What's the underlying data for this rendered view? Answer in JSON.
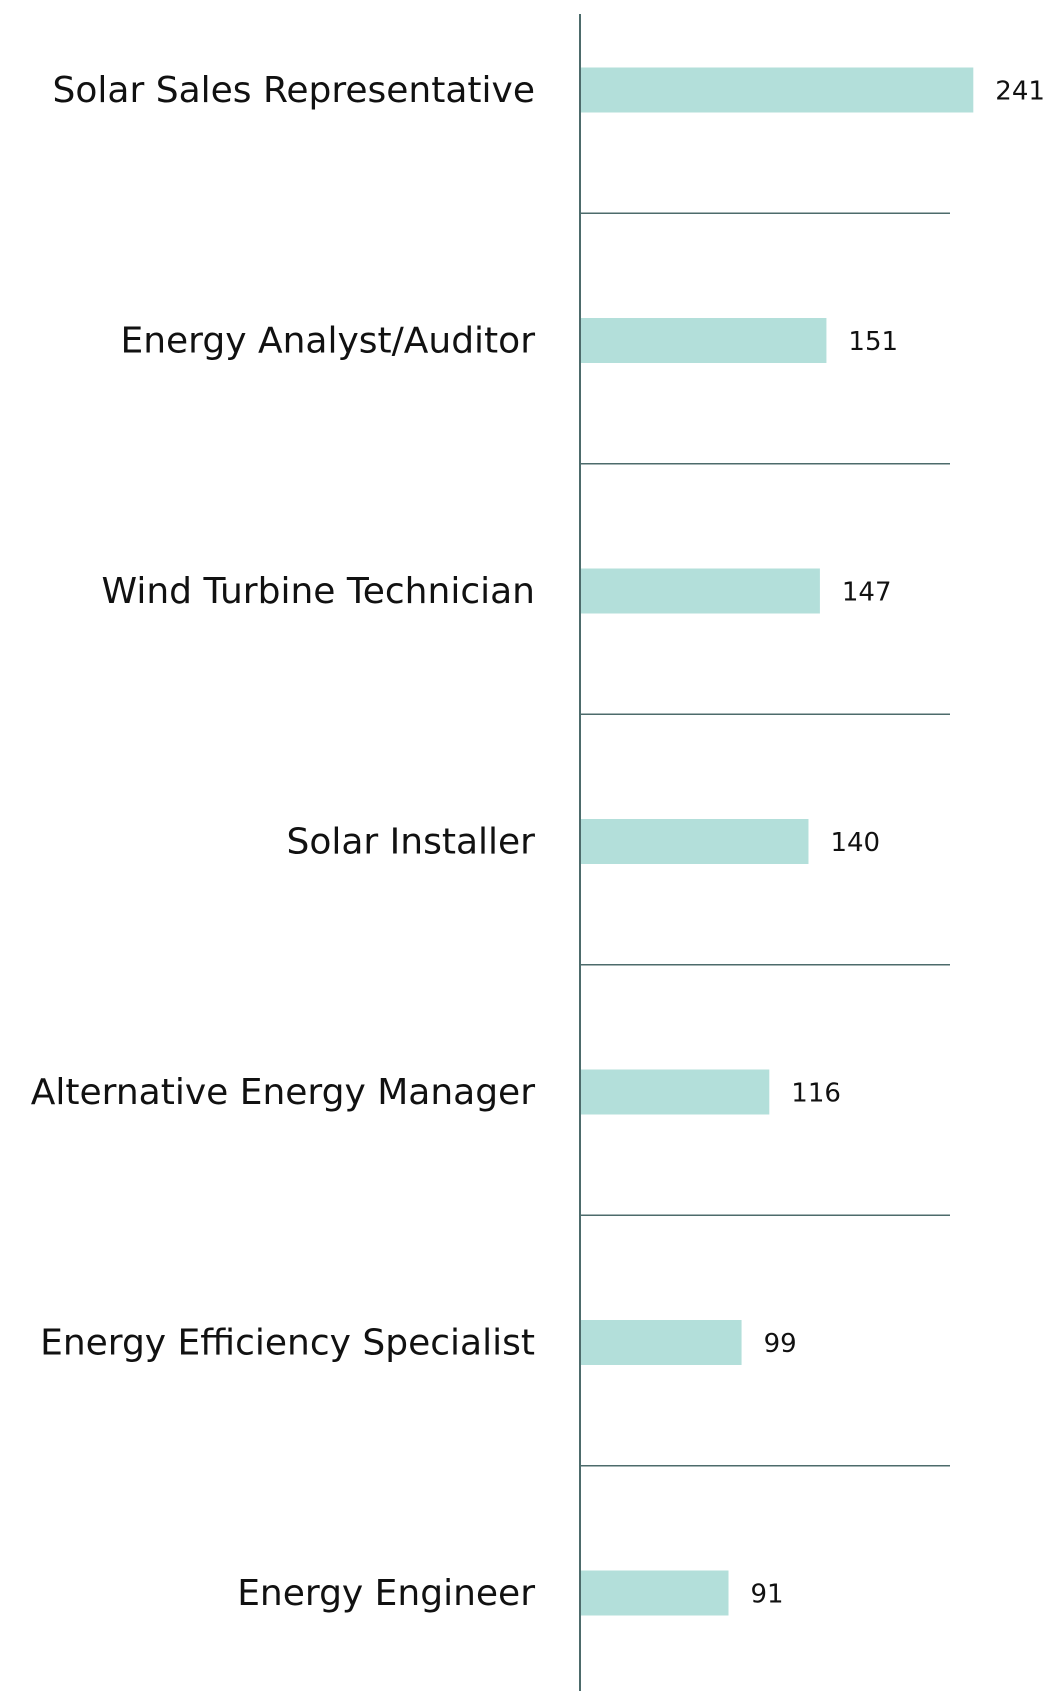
{
  "chart_data": {
    "type": "bar",
    "orientation": "horizontal",
    "categories": [
      "Solar Sales Representative",
      "Energy Analyst/Auditor",
      "Wind Turbine Technician",
      "Solar Installer",
      "Alternative Energy Manager",
      "Energy Efficiency Specialist",
      "Energy Engineer"
    ],
    "values": [
      241,
      151,
      147,
      140,
      116,
      99,
      91
    ],
    "color": "#b3dfda",
    "xlim": [
      0,
      250
    ],
    "grid": true
  }
}
